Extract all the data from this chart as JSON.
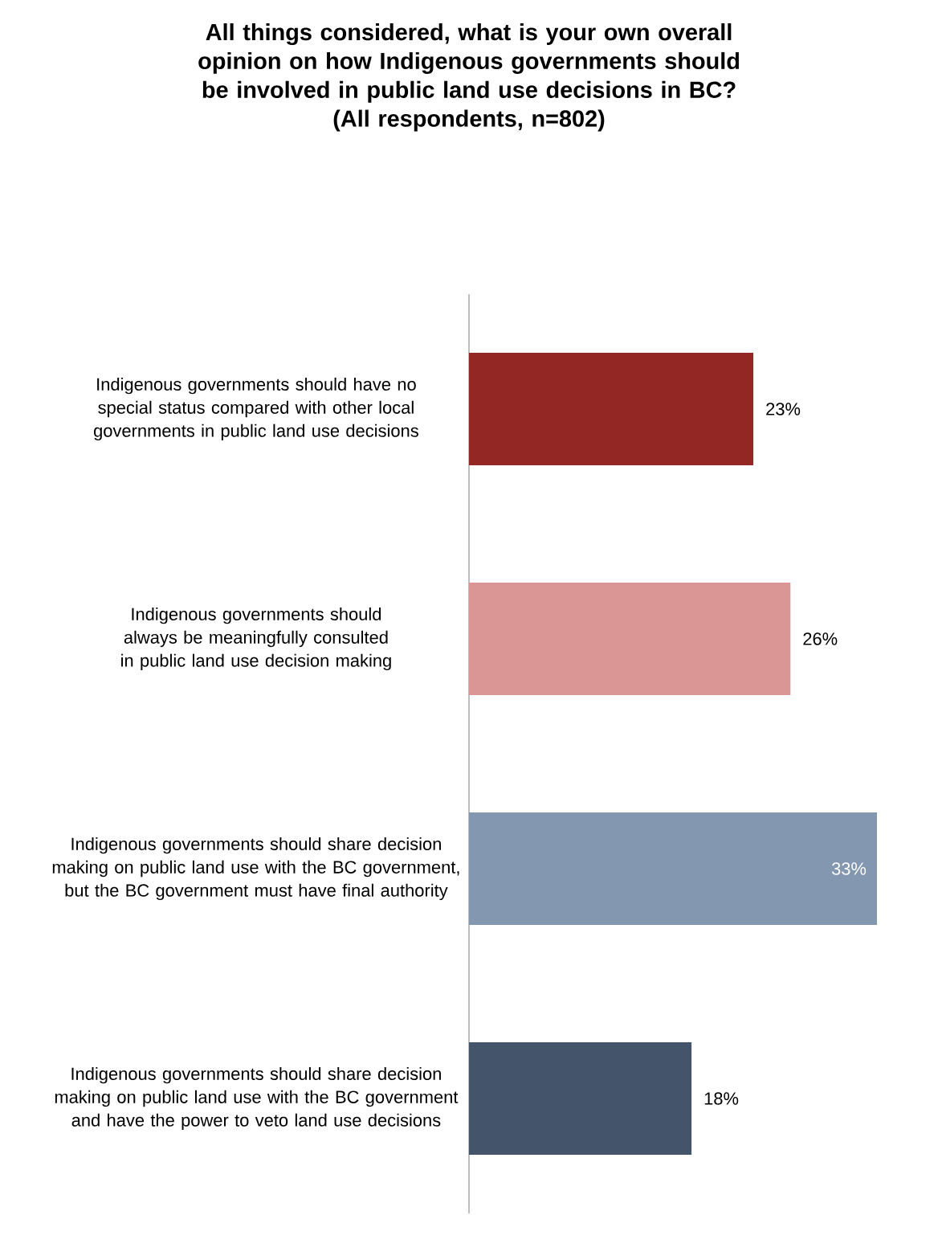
{
  "chart_data": {
    "type": "bar",
    "orientation": "horizontal",
    "title": "All things considered, what is your own overall opinion on how Indigenous governments should be involved in public land use decisions in BC?",
    "subtitle": "(All respondents, n=802)",
    "categories": [
      "Indigenous governments should have no special status compared with other local governments in public land use decisions",
      "Indigenous governments should always be meaningfully consulted in public land use decision making",
      "Indigenous governments should share decision making on public land use with the BC government, but the BC government must have final authority",
      "Indigenous governments should share decision making on public land use with the BC government and have the power to veto land use decisions"
    ],
    "values": [
      23,
      26,
      33,
      18
    ],
    "colors": [
      "#922724",
      "#d99694",
      "#8497b0",
      "#44546a"
    ],
    "value_labels": [
      "23%",
      "26%",
      "33%",
      "18%"
    ]
  }
}
